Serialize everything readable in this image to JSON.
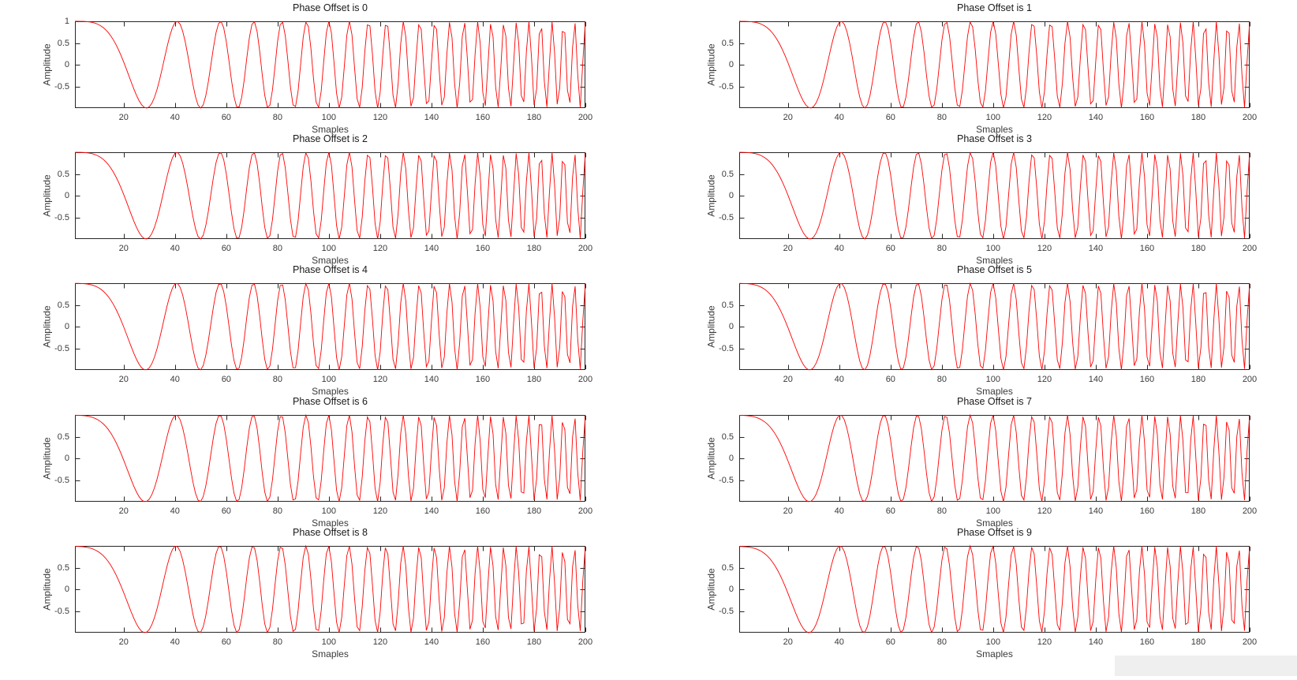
{
  "window": {
    "background": "#ffffff"
  },
  "chart_data": {
    "type": "line",
    "figure_layout": {
      "rows": 5,
      "cols": 2,
      "order": "row-major"
    },
    "line_color": "#ff0000",
    "axis_color": "#262626",
    "tick_label_color": "#3a3a3a",
    "title_color": "#1a1a1a",
    "grid": false,
    "box": true,
    "tick_direction": "in",
    "xlabel": "Smaples",
    "ylabel": "Amplitude",
    "xlim": [
      1,
      200
    ],
    "ylim": [
      -1,
      1
    ],
    "xticks": [
      20,
      40,
      60,
      80,
      100,
      120,
      140,
      160,
      180,
      200
    ],
    "signal": {
      "type": "quadratic_chirp",
      "formula": "y(t) = cos(2*pi*0.0006*t^2 + phase_offset_deg*pi/180)",
      "chirp_rate_cycles_per_sample_sq": 0.0006,
      "t_start": 1,
      "t_end": 200,
      "n_samples": 200,
      "amplitude": 1
    },
    "subplots": [
      {
        "title": "Phase Offset is 0",
        "phase_offset_deg": 0,
        "yticks": [
          1,
          0.5,
          0,
          -0.5
        ]
      },
      {
        "title": "Phase Offset is 1",
        "phase_offset_deg": 1,
        "yticks": [
          0.5,
          0,
          -0.5
        ]
      },
      {
        "title": "Phase Offset is 2",
        "phase_offset_deg": 2,
        "yticks": [
          0.5,
          0,
          -0.5
        ]
      },
      {
        "title": "Phase Offset is 3",
        "phase_offset_deg": 3,
        "yticks": [
          0.5,
          0,
          -0.5
        ]
      },
      {
        "title": "Phase Offset is 4",
        "phase_offset_deg": 4,
        "yticks": [
          0.5,
          0,
          -0.5
        ]
      },
      {
        "title": "Phase Offset is 5",
        "phase_offset_deg": 5,
        "yticks": [
          0.5,
          0,
          -0.5
        ]
      },
      {
        "title": "Phase Offset is 6",
        "phase_offset_deg": 6,
        "yticks": [
          0.5,
          0,
          -0.5
        ]
      },
      {
        "title": "Phase Offset is 7",
        "phase_offset_deg": 7,
        "yticks": [
          0.5,
          0,
          -0.5
        ]
      },
      {
        "title": "Phase Offset is 8",
        "phase_offset_deg": 8,
        "yticks": [
          0.5,
          0,
          -0.5
        ]
      },
      {
        "title": "Phase Offset is 9",
        "phase_offset_deg": 9,
        "yticks": [
          0.5,
          0,
          -0.5
        ]
      }
    ]
  },
  "artifacts": {
    "bottom_right_panel": {
      "color": "#efefef"
    }
  }
}
